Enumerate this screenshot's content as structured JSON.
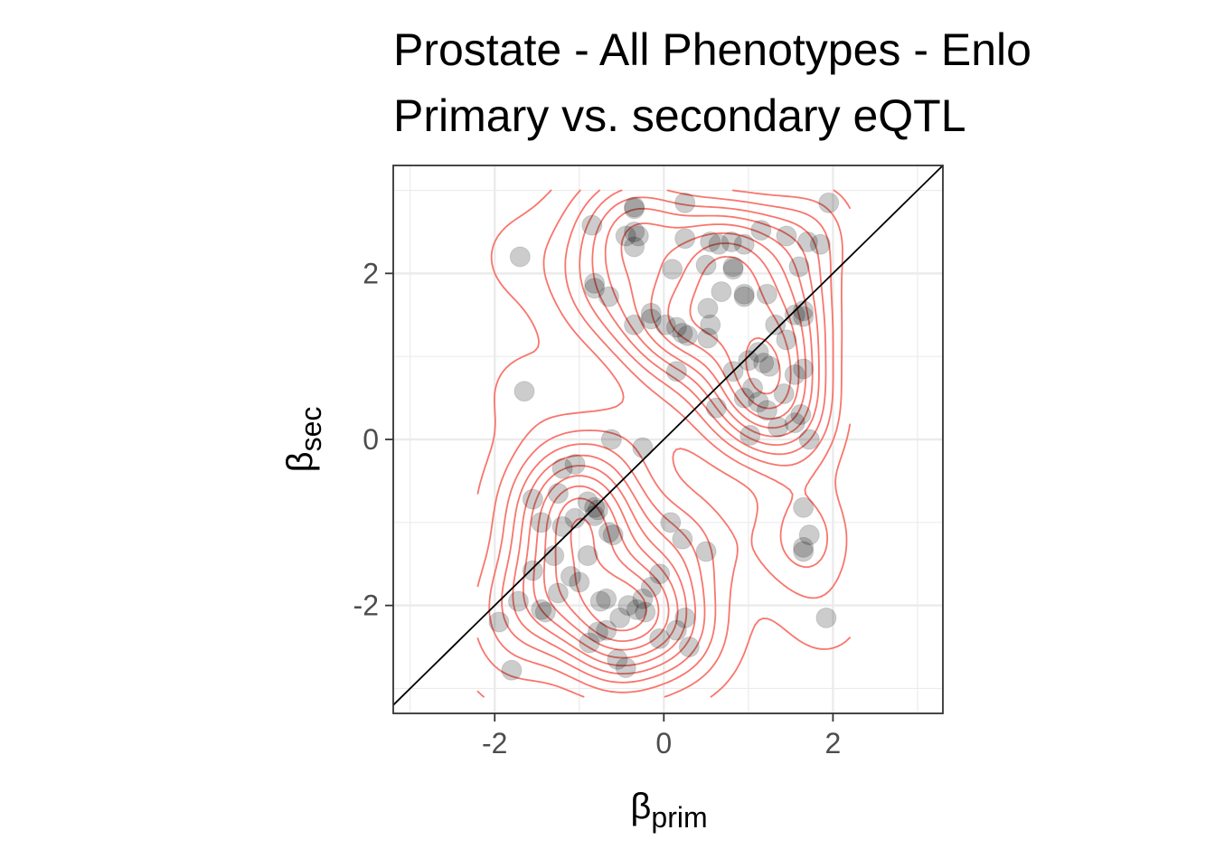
{
  "chart_data": {
    "type": "scatter",
    "title": "Prostate - All Phenotypes - Enlo",
    "subtitle": "Primary vs. secondary eQTL",
    "xlabel": {
      "base": "β",
      "sub": "prim"
    },
    "ylabel": {
      "base": "β",
      "sub": "sec"
    },
    "xlim": [
      -3.2,
      3.3
    ],
    "ylim": [
      -3.3,
      3.3
    ],
    "x_ticks": [
      -2,
      0,
      2
    ],
    "y_ticks": [
      -2,
      0,
      2
    ],
    "x_tick_labels": [
      "-2",
      "0",
      "2"
    ],
    "y_tick_labels": [
      "-2",
      "0",
      "2"
    ],
    "grid": true,
    "reference_line": "y = x",
    "colors": {
      "points": "#000000",
      "contours": "#f8766d",
      "grid": "#ebebeb",
      "panel_border": "#333333"
    },
    "points": [
      [
        1.95,
        2.85
      ],
      [
        0.25,
        2.85
      ],
      [
        -0.35,
        2.8
      ],
      [
        -0.35,
        2.78
      ],
      [
        -0.85,
        2.58
      ],
      [
        -0.35,
        2.5
      ],
      [
        -0.3,
        2.45
      ],
      [
        -0.45,
        2.45
      ],
      [
        -0.35,
        2.32
      ],
      [
        0.25,
        2.42
      ],
      [
        0.55,
        2.38
      ],
      [
        0.65,
        2.35
      ],
      [
        0.8,
        2.38
      ],
      [
        0.95,
        2.35
      ],
      [
        1.15,
        2.52
      ],
      [
        1.45,
        2.45
      ],
      [
        1.7,
        2.38
      ],
      [
        1.85,
        2.35
      ],
      [
        0.1,
        2.05
      ],
      [
        0.5,
        2.1
      ],
      [
        0.82,
        2.05
      ],
      [
        0.82,
        2.08
      ],
      [
        1.6,
        2.08
      ],
      [
        -1.7,
        2.2
      ],
      [
        -0.82,
        1.88
      ],
      [
        -0.82,
        1.82
      ],
      [
        -0.65,
        1.72
      ],
      [
        0.68,
        1.78
      ],
      [
        0.95,
        1.75
      ],
      [
        0.95,
        1.72
      ],
      [
        1.22,
        1.75
      ],
      [
        -0.15,
        1.52
      ],
      [
        -0.35,
        1.38
      ],
      [
        -0.15,
        1.45
      ],
      [
        0.02,
        1.38
      ],
      [
        0.15,
        1.35
      ],
      [
        0.22,
        1.28
      ],
      [
        0.28,
        1.25
      ],
      [
        0.52,
        1.58
      ],
      [
        0.55,
        1.38
      ],
      [
        0.52,
        1.22
      ],
      [
        1.32,
        1.38
      ],
      [
        1.55,
        1.5
      ],
      [
        1.65,
        1.55
      ],
      [
        1.65,
        1.48
      ],
      [
        1.45,
        1.2
      ],
      [
        1.0,
        0.95
      ],
      [
        1.12,
        1.05
      ],
      [
        1.25,
        0.88
      ],
      [
        1.18,
        0.92
      ],
      [
        1.05,
        0.62
      ],
      [
        0.82,
        0.82
      ],
      [
        0.15,
        0.82
      ],
      [
        1.55,
        0.78
      ],
      [
        1.65,
        0.85
      ],
      [
        0.95,
        0.5
      ],
      [
        1.12,
        0.45
      ],
      [
        1.22,
        0.35
      ],
      [
        0.62,
        0.38
      ],
      [
        1.42,
        0.55
      ],
      [
        1.62,
        0.3
      ],
      [
        1.55,
        0.2
      ],
      [
        1.35,
        0.15
      ],
      [
        1.72,
        0.0
      ],
      [
        1.02,
        0.05
      ],
      [
        -1.65,
        0.58
      ],
      [
        -0.62,
        0.0
      ],
      [
        -0.25,
        -0.1
      ],
      [
        -1.2,
        -0.35
      ],
      [
        -1.05,
        -0.3
      ],
      [
        -1.25,
        -0.65
      ],
      [
        -1.55,
        -0.72
      ],
      [
        -0.9,
        -0.75
      ],
      [
        -0.82,
        -0.82
      ],
      [
        -0.78,
        -0.85
      ],
      [
        -0.82,
        -0.92
      ],
      [
        -1.05,
        -0.95
      ],
      [
        -1.45,
        -1.0
      ],
      [
        -1.2,
        -1.05
      ],
      [
        -0.65,
        -1.12
      ],
      [
        -0.6,
        -1.15
      ],
      [
        0.08,
        -1.0
      ],
      [
        0.22,
        -1.2
      ],
      [
        0.5,
        -1.35
      ],
      [
        1.65,
        -0.82
      ],
      [
        1.72,
        -1.15
      ],
      [
        1.65,
        -1.3
      ],
      [
        1.65,
        -1.35
      ],
      [
        -1.55,
        -1.58
      ],
      [
        -1.3,
        -1.4
      ],
      [
        -0.9,
        -1.4
      ],
      [
        -1.1,
        -1.65
      ],
      [
        -1.0,
        -1.72
      ],
      [
        -1.25,
        -1.85
      ],
      [
        -0.05,
        -1.62
      ],
      [
        -0.15,
        -1.78
      ],
      [
        -0.25,
        -1.92
      ],
      [
        -0.75,
        -1.95
      ],
      [
        -0.68,
        -1.92
      ],
      [
        -0.42,
        -2.0
      ],
      [
        -0.32,
        -2.05
      ],
      [
        -0.22,
        -2.08
      ],
      [
        -0.52,
        -2.15
      ],
      [
        -0.78,
        -2.32
      ],
      [
        -0.68,
        -2.3
      ],
      [
        -1.45,
        -2.05
      ],
      [
        -1.4,
        -2.08
      ],
      [
        -1.72,
        -1.95
      ],
      [
        -1.95,
        -2.2
      ],
      [
        0.25,
        -2.15
      ],
      [
        0.15,
        -2.3
      ],
      [
        -0.05,
        -2.4
      ],
      [
        0.3,
        -2.5
      ],
      [
        -0.88,
        -2.45
      ],
      [
        -0.55,
        -2.65
      ],
      [
        -0.45,
        -2.75
      ],
      [
        -1.8,
        -2.78
      ],
      [
        1.92,
        -2.15
      ]
    ]
  }
}
